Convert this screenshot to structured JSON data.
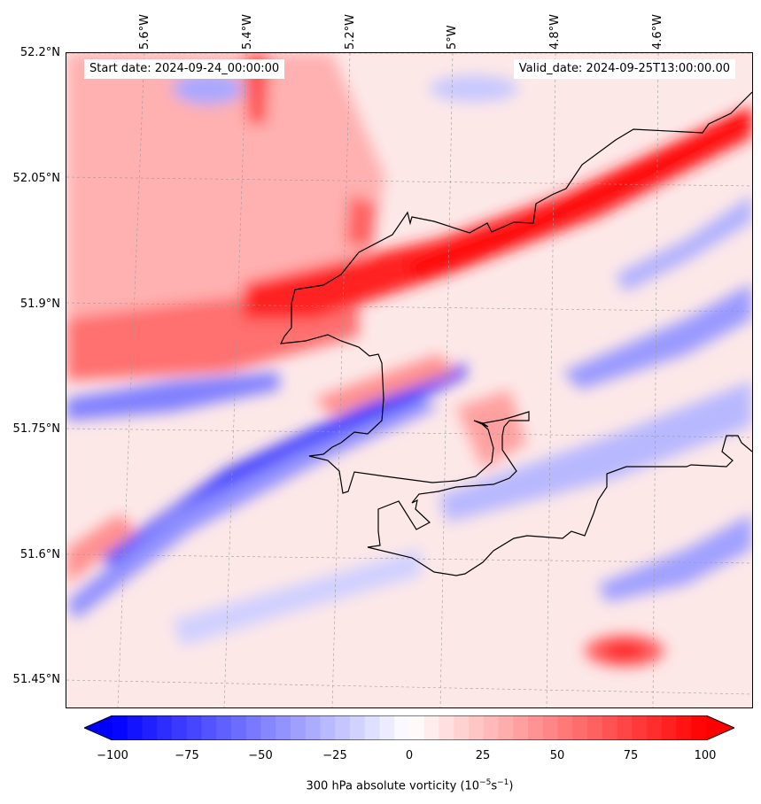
{
  "header": {
    "start_label": "Start date: 2024-09-24_00:00:00",
    "valid_label": "Valid_date: 2024-09-25T13:00:00.00"
  },
  "map": {
    "projection_note": "",
    "lon_ticks": [
      "5.6°W",
      "5.4°W",
      "5.2°W",
      "5°W",
      "4.8°W",
      "4.6°W"
    ],
    "lat_ticks": [
      "52.2°N",
      "52.05°N",
      "51.9°N",
      "51.75°N",
      "51.6°N",
      "51.45°N"
    ],
    "extent": {
      "lon_min": -5.75,
      "lon_max": -4.45,
      "lat_min": 51.42,
      "lat_max": 52.2
    }
  },
  "colorbar": {
    "title_main": "300 hPa absolute vorticity (10",
    "title_exp1": "−5",
    "title_mid": "s",
    "title_exp2": "−1",
    "title_end": ")",
    "ticks": [
      "−100",
      "−75",
      "−50",
      "−25",
      "0",
      "25",
      "50",
      "75",
      "100"
    ],
    "tick_values": [
      -100,
      -75,
      -50,
      -25,
      0,
      25,
      50,
      75,
      100
    ],
    "range": [
      -100,
      100
    ],
    "colormap": "bwr",
    "extend": "both",
    "neg_color": "#0000ff",
    "pos_color": "#ff0000"
  }
}
